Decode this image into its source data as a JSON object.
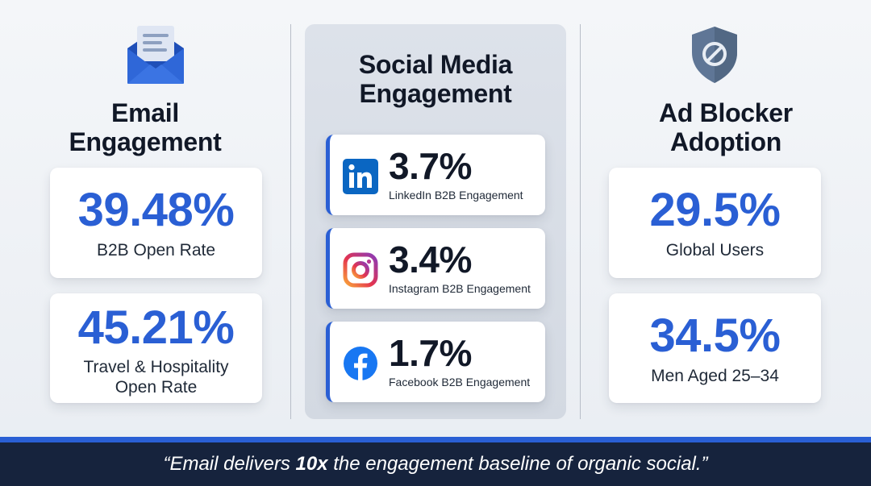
{
  "email": {
    "icon": "envelope-icon",
    "title_line1": "Email",
    "title_line2": "Engagement",
    "cards": [
      {
        "value": "39.48%",
        "label": "B2B Open Rate"
      },
      {
        "value": "45.21%",
        "label_line1": "Travel & Hospitality",
        "label_line2": "Open Rate"
      }
    ]
  },
  "social": {
    "title_line1": "Social Media",
    "title_line2": "Engagement",
    "cards": [
      {
        "icon": "linkedin-icon",
        "value": "3.7%",
        "label": "LinkedIn B2B Engagement"
      },
      {
        "icon": "instagram-icon",
        "value": "3.4%",
        "label": "Instagram B2B Engagement"
      },
      {
        "icon": "facebook-icon",
        "value": "1.7%",
        "label": "Facebook B2B Engagement"
      }
    ]
  },
  "adblock": {
    "icon": "shield-block-icon",
    "title_line1": "Ad Blocker",
    "title_line2": "Adoption",
    "cards": [
      {
        "value": "29.5%",
        "label": "Global Users"
      },
      {
        "value": "34.5%",
        "label": "Men Aged 25–34"
      }
    ]
  },
  "footer": {
    "quote_open": "“Email delivers ",
    "quote_bold": "10x",
    "quote_close": " the engagement baseline of organic social.”"
  },
  "colors": {
    "accent": "#2a5fd4",
    "footer_bg": "#16233d",
    "linkedin": "#0a66c2",
    "facebook": "#1877f2",
    "shield": "#5f7696"
  }
}
